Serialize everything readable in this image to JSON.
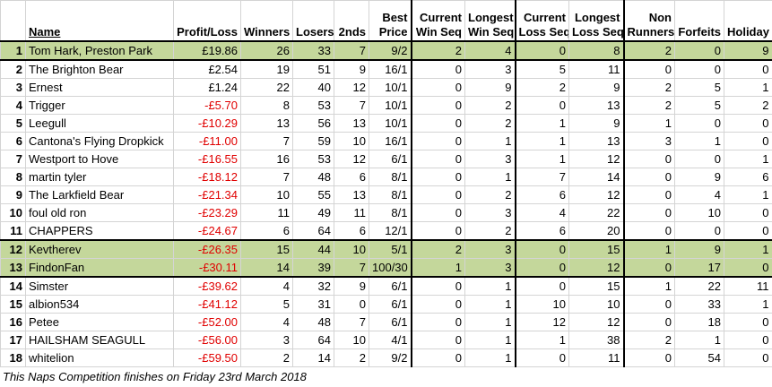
{
  "table": {
    "headers": [
      [
        "Name"
      ],
      [
        "Profit/Loss"
      ],
      [
        "Winners"
      ],
      [
        "Losers"
      ],
      [
        "2nds"
      ],
      [
        "Best",
        "Price"
      ],
      [
        "Current",
        "Win Seq"
      ],
      [
        "Longest",
        "Win Seq"
      ],
      [
        "Current",
        "Loss Seq"
      ],
      [
        "Longest",
        "Loss Seq"
      ],
      [
        "Non",
        "Runners"
      ],
      [
        "Forfeits"
      ],
      [
        "Holiday"
      ]
    ],
    "rows": [
      [
        1,
        "Tom Hark, Preston Park",
        "£19.86",
        26,
        33,
        7,
        "9/2",
        2,
        4,
        0,
        8,
        2,
        0,
        9
      ],
      [
        2,
        "The Brighton Bear",
        "£2.54",
        19,
        51,
        9,
        "16/1",
        0,
        3,
        5,
        11,
        0,
        0,
        0
      ],
      [
        3,
        "Ernest",
        "£1.24",
        22,
        40,
        12,
        "10/1",
        0,
        9,
        2,
        9,
        2,
        5,
        1
      ],
      [
        4,
        "Trigger",
        "-£5.70",
        8,
        53,
        7,
        "10/1",
        0,
        2,
        0,
        13,
        2,
        5,
        2
      ],
      [
        5,
        "Leegull",
        "-£10.29",
        13,
        56,
        13,
        "10/1",
        0,
        2,
        1,
        9,
        1,
        0,
        0
      ],
      [
        6,
        "Cantona's Flying Dropkick",
        "-£11.00",
        7,
        59,
        10,
        "16/1",
        0,
        1,
        1,
        13,
        3,
        1,
        0
      ],
      [
        7,
        "Westport to Hove",
        "-£16.55",
        16,
        53,
        12,
        "6/1",
        0,
        3,
        1,
        12,
        0,
        0,
        1
      ],
      [
        8,
        "martin tyler",
        "-£18.12",
        7,
        48,
        6,
        "8/1",
        0,
        1,
        7,
        14,
        0,
        9,
        6
      ],
      [
        9,
        "The Larkfield Bear",
        "-£21.34",
        10,
        55,
        13,
        "8/1",
        0,
        2,
        6,
        12,
        0,
        4,
        1
      ],
      [
        10,
        "foul old ron",
        "-£23.29",
        11,
        49,
        11,
        "8/1",
        0,
        3,
        4,
        22,
        0,
        10,
        0
      ],
      [
        11,
        "CHAPPERS",
        "-£24.67",
        6,
        64,
        6,
        "12/1",
        0,
        2,
        6,
        20,
        0,
        0,
        0
      ],
      [
        12,
        "Kevtherev",
        "-£26.35",
        15,
        44,
        10,
        "5/1",
        2,
        3,
        0,
        15,
        1,
        9,
        1
      ],
      [
        13,
        "FindonFan",
        "-£30.11",
        14,
        39,
        7,
        "100/30",
        1,
        3,
        0,
        12,
        0,
        17,
        0
      ],
      [
        14,
        "Simster",
        "-£39.62",
        4,
        32,
        9,
        "6/1",
        0,
        1,
        0,
        15,
        1,
        22,
        11
      ],
      [
        15,
        "albion534",
        "-£41.12",
        5,
        31,
        0,
        "6/1",
        0,
        1,
        10,
        10,
        0,
        33,
        1
      ],
      [
        16,
        "Petee",
        "-£52.00",
        4,
        48,
        7,
        "6/1",
        0,
        1,
        12,
        12,
        0,
        18,
        0
      ],
      [
        17,
        "HAILSHAM SEAGULL",
        "-£56.00",
        3,
        64,
        10,
        "4/1",
        0,
        1,
        1,
        38,
        2,
        1,
        0
      ],
      [
        18,
        "whitelion",
        "-£59.50",
        2,
        14,
        2,
        "9/2",
        0,
        1,
        0,
        11,
        0,
        54,
        0
      ]
    ]
  },
  "footer": "This Naps Competition finishes on Friday 23rd March 2018"
}
